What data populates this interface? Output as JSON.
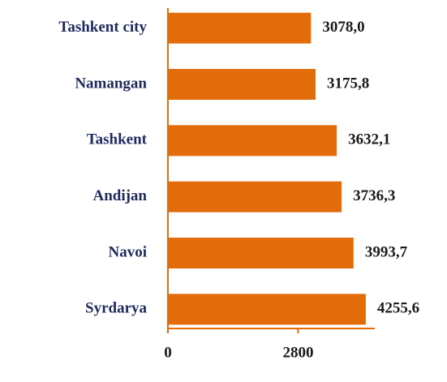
{
  "chart_data": {
    "type": "bar",
    "orientation": "horizontal",
    "categories": [
      "Tashkent city",
      "Namangan",
      "Tashkent",
      "Andijan",
      "Navoi",
      "Syrdarya"
    ],
    "values": [
      3078.0,
      3175.8,
      3632.1,
      3736.3,
      3993.7,
      4255.6
    ],
    "value_labels": [
      "3078,0",
      "3175,8",
      "3632,1",
      "3736,3",
      "3993,7",
      "4255,6"
    ],
    "color": "#e36c0a",
    "xlim": [
      0,
      4450
    ],
    "xticks": [
      0,
      2800
    ],
    "grid": false
  }
}
